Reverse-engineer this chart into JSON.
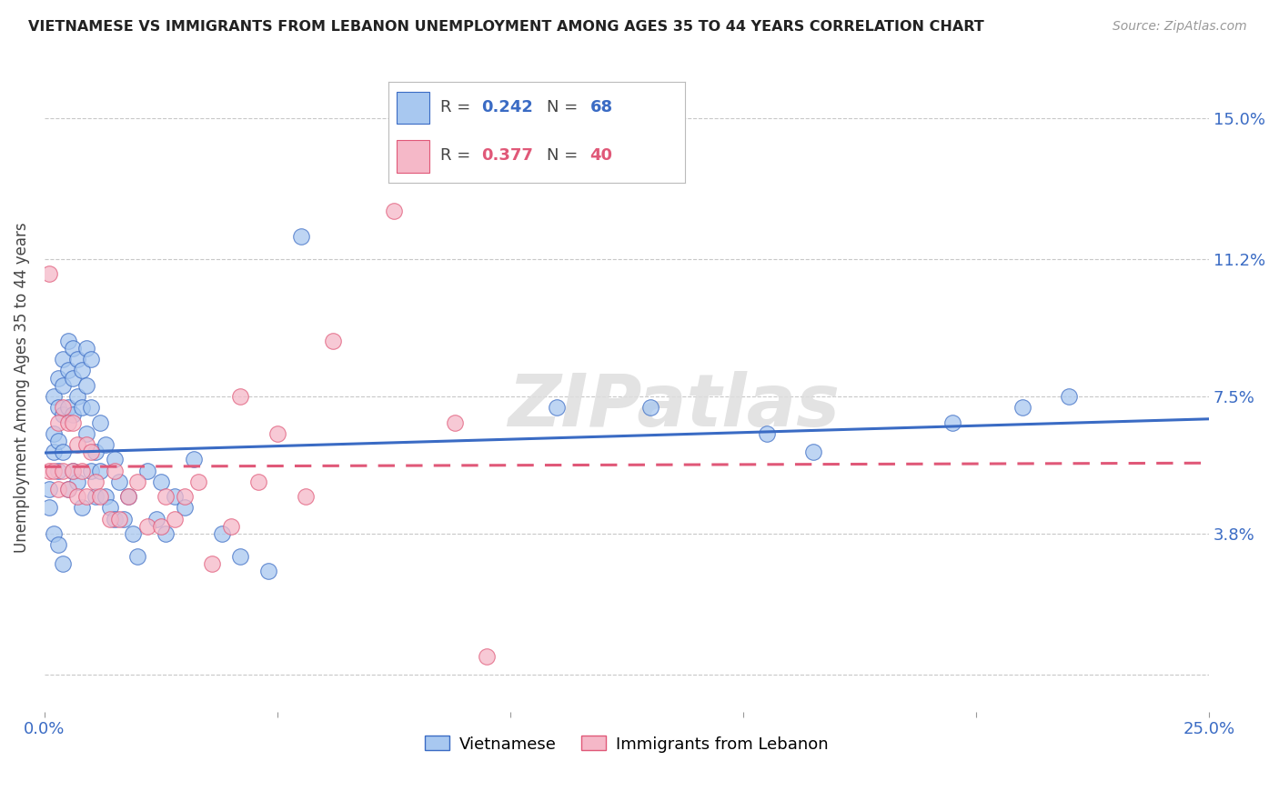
{
  "title": "VIETNAMESE VS IMMIGRANTS FROM LEBANON UNEMPLOYMENT AMONG AGES 35 TO 44 YEARS CORRELATION CHART",
  "source": "Source: ZipAtlas.com",
  "ylabel": "Unemployment Among Ages 35 to 44 years",
  "xlim": [
    0.0,
    0.25
  ],
  "ylim": [
    -0.01,
    0.165
  ],
  "ytick_positions": [
    0.0,
    0.038,
    0.075,
    0.112,
    0.15
  ],
  "ytick_labels": [
    "",
    "3.8%",
    "7.5%",
    "11.2%",
    "15.0%"
  ],
  "legend1_r": "0.242",
  "legend1_n": "68",
  "legend2_r": "0.377",
  "legend2_n": "40",
  "color_blue": "#A8C8F0",
  "color_pink": "#F5B8C8",
  "line_color_blue": "#3A6BC4",
  "line_color_pink": "#E05878",
  "watermark": "ZIPatlas",
  "viet_x": [
    0.001,
    0.001,
    0.002,
    0.002,
    0.002,
    0.002,
    0.003,
    0.003,
    0.003,
    0.003,
    0.003,
    0.004,
    0.004,
    0.004,
    0.004,
    0.004,
    0.005,
    0.005,
    0.005,
    0.005,
    0.006,
    0.006,
    0.006,
    0.006,
    0.007,
    0.007,
    0.007,
    0.008,
    0.008,
    0.008,
    0.009,
    0.009,
    0.009,
    0.01,
    0.01,
    0.01,
    0.011,
    0.011,
    0.012,
    0.012,
    0.013,
    0.013,
    0.014,
    0.015,
    0.015,
    0.016,
    0.017,
    0.018,
    0.019,
    0.02,
    0.022,
    0.024,
    0.025,
    0.026,
    0.028,
    0.03,
    0.032,
    0.038,
    0.042,
    0.048,
    0.055,
    0.11,
    0.13,
    0.155,
    0.165,
    0.195,
    0.21,
    0.22
  ],
  "viet_y": [
    0.05,
    0.045,
    0.075,
    0.065,
    0.06,
    0.038,
    0.08,
    0.072,
    0.063,
    0.055,
    0.035,
    0.085,
    0.078,
    0.07,
    0.06,
    0.03,
    0.09,
    0.082,
    0.072,
    0.05,
    0.088,
    0.08,
    0.07,
    0.055,
    0.085,
    0.075,
    0.052,
    0.082,
    0.072,
    0.045,
    0.088,
    0.078,
    0.065,
    0.085,
    0.072,
    0.055,
    0.06,
    0.048,
    0.068,
    0.055,
    0.062,
    0.048,
    0.045,
    0.058,
    0.042,
    0.052,
    0.042,
    0.048,
    0.038,
    0.032,
    0.055,
    0.042,
    0.052,
    0.038,
    0.048,
    0.045,
    0.058,
    0.038,
    0.032,
    0.028,
    0.118,
    0.072,
    0.072,
    0.065,
    0.06,
    0.068,
    0.072,
    0.075
  ],
  "leb_x": [
    0.001,
    0.001,
    0.002,
    0.003,
    0.003,
    0.004,
    0.004,
    0.005,
    0.005,
    0.006,
    0.006,
    0.007,
    0.007,
    0.008,
    0.009,
    0.009,
    0.01,
    0.011,
    0.012,
    0.014,
    0.015,
    0.016,
    0.018,
    0.02,
    0.022,
    0.025,
    0.026,
    0.028,
    0.03,
    0.033,
    0.036,
    0.04,
    0.042,
    0.046,
    0.05,
    0.056,
    0.062,
    0.075,
    0.088,
    0.095
  ],
  "leb_y": [
    0.108,
    0.055,
    0.055,
    0.068,
    0.05,
    0.072,
    0.055,
    0.068,
    0.05,
    0.068,
    0.055,
    0.062,
    0.048,
    0.055,
    0.062,
    0.048,
    0.06,
    0.052,
    0.048,
    0.042,
    0.055,
    0.042,
    0.048,
    0.052,
    0.04,
    0.04,
    0.048,
    0.042,
    0.048,
    0.052,
    0.03,
    0.04,
    0.075,
    0.052,
    0.065,
    0.048,
    0.09,
    0.125,
    0.068,
    0.005
  ]
}
